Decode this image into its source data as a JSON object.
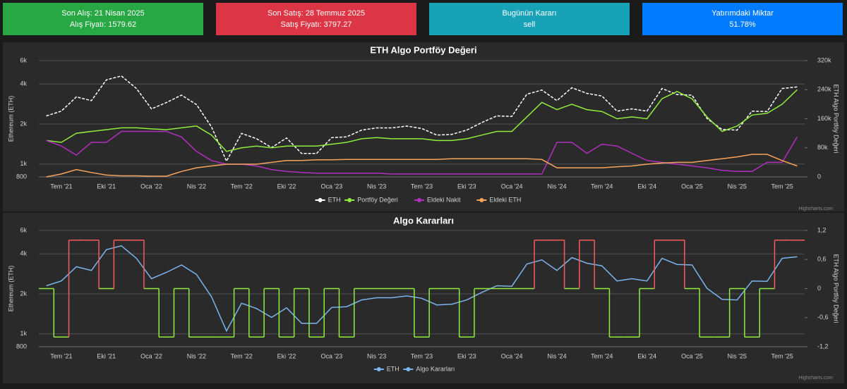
{
  "cards": [
    {
      "title": "Son Alış: 21 Nisan 2025",
      "text": "Alış Fiyatı: 1579.62",
      "color": "#28a745"
    },
    {
      "title": "Son Satış: 28 Temmuz 2025",
      "text": "Satış Fiyatı: 3797.27",
      "color": "#dc3545"
    },
    {
      "title": "Bugünün Kararı",
      "text": "sell",
      "color": "#17a2b8"
    },
    {
      "title": "Yatırımdaki Miktar",
      "text": "51.78%",
      "color": "#007bff"
    }
  ],
  "chart_data": [
    {
      "type": "line",
      "title": "ETH Algo Portföy Değeri",
      "y_label": "Ethereum (ETH)",
      "y2_label": "ETH Algo Portföy Değeri",
      "credits": "Highcharts.com",
      "categories": [
        null,
        "Tem '21",
        null,
        null,
        "Eki '21",
        null,
        null,
        "Oca '22",
        null,
        null,
        "Nis '22",
        null,
        null,
        "Tem '22",
        null,
        null,
        "Eki '22",
        null,
        null,
        "Oca '23",
        null,
        null,
        "Nis '23",
        null,
        null,
        "Tem '23",
        null,
        null,
        "Eki '23",
        null,
        null,
        "Oca '24",
        null,
        null,
        "Nis '24",
        null,
        null,
        "Tem '24",
        null,
        null,
        "Eki '24",
        null,
        null,
        "Oca '25",
        null,
        null,
        "Nis '25",
        null,
        null,
        "Tem '25",
        null
      ],
      "ylog": true,
      "ylim": [
        800,
        6000
      ],
      "yticks": [
        800,
        {
          "value": 1000,
          "label": "1k"
        },
        {
          "value": 2000,
          "label": "2k"
        },
        {
          "value": 4000,
          "label": "4k"
        },
        {
          "value": 6000,
          "label": "6k"
        }
      ],
      "y2lim": [
        0,
        320000
      ],
      "y2ticks": [
        0,
        {
          "value": 80000,
          "label": "80k"
        },
        {
          "value": 160000,
          "label": "160k"
        },
        {
          "value": 240000,
          "label": "240k"
        },
        {
          "value": 320000,
          "label": "320k"
        }
      ],
      "grid": true,
      "series": [
        {
          "name": "ETH",
          "color": "#ffffff",
          "dashed": true,
          "values": [
            2300,
            2500,
            3200,
            3000,
            4300,
            4600,
            3700,
            2600,
            2900,
            3300,
            2800,
            1900,
            1050,
            1700,
            1550,
            1330,
            1570,
            1200,
            1200,
            1580,
            1600,
            1800,
            1870,
            1870,
            1930,
            1850,
            1650,
            1670,
            1800,
            2050,
            2300,
            2280,
            3350,
            3600,
            3000,
            3750,
            3400,
            3250,
            2500,
            2600,
            2500,
            3700,
            3330,
            3300,
            2200,
            1820,
            1800,
            2500,
            2480,
            3700,
            3800
          ]
        },
        {
          "name": "Portföy Değeri",
          "color": "#90ed3d",
          "axis": "y2",
          "values": [
            100000,
            95000,
            120000,
            125000,
            130000,
            135000,
            135000,
            132000,
            130000,
            135000,
            140000,
            115000,
            70000,
            80000,
            85000,
            80000,
            85000,
            85000,
            85000,
            90000,
            95000,
            105000,
            108000,
            105000,
            105000,
            105000,
            100000,
            100000,
            105000,
            115000,
            125000,
            125000,
            165000,
            205000,
            185000,
            200000,
            185000,
            180000,
            160000,
            165000,
            160000,
            215000,
            235000,
            215000,
            165000,
            125000,
            140000,
            170000,
            175000,
            200000,
            240000
          ]
        },
        {
          "name": "Eldeki Nakit",
          "color": "#b22fbf",
          "axis": "y2",
          "values": [
            100000,
            85000,
            60000,
            95000,
            95000,
            125000,
            125000,
            125000,
            125000,
            110000,
            70000,
            45000,
            35000,
            35000,
            30000,
            20000,
            15000,
            12000,
            10000,
            10000,
            10000,
            10000,
            10000,
            8000,
            8000,
            8000,
            8000,
            8000,
            8000,
            8000,
            8000,
            8000,
            8000,
            8000,
            95000,
            95000,
            65000,
            90000,
            85000,
            65000,
            45000,
            40000,
            35000,
            30000,
            25000,
            18000,
            15000,
            15000,
            40000,
            40000,
            110000
          ]
        },
        {
          "name": "Eldeki ETH",
          "color": "#f7a35c",
          "axis": "y2",
          "values": [
            0,
            8000,
            20000,
            12000,
            5000,
            3000,
            3000,
            2000,
            2000,
            15000,
            25000,
            30000,
            35000,
            35000,
            35000,
            40000,
            45000,
            45000,
            47000,
            47000,
            48000,
            48000,
            48000,
            48000,
            48000,
            48000,
            48000,
            50000,
            50000,
            50000,
            50000,
            50000,
            50000,
            48000,
            25000,
            25000,
            25000,
            25000,
            28000,
            30000,
            35000,
            38000,
            40000,
            40000,
            45000,
            50000,
            55000,
            62000,
            62000,
            45000,
            30000
          ]
        }
      ]
    },
    {
      "type": "line",
      "title": "Algo Kararları",
      "y_label": "Ethereum (ETH)",
      "y2_label": "ETH Algo Portföy Değeri",
      "credits": "Highcharts.com",
      "categories": [
        null,
        "Tem '21",
        null,
        null,
        "Eki '21",
        null,
        null,
        "Oca '22",
        null,
        null,
        "Nis '22",
        null,
        null,
        "Tem '22",
        null,
        null,
        "Eki '22",
        null,
        null,
        "Oca '23",
        null,
        null,
        "Nis '23",
        null,
        null,
        "Tem '23",
        null,
        null,
        "Eki '23",
        null,
        null,
        "Oca '24",
        null,
        null,
        "Nis '24",
        null,
        null,
        "Tem '24",
        null,
        null,
        "Eki '24",
        null,
        null,
        "Oca '25",
        null,
        null,
        "Nis '25",
        null,
        null,
        "Tem '25",
        null
      ],
      "ylog": true,
      "ylim": [
        800,
        6000
      ],
      "yticks": [
        800,
        {
          "value": 1000,
          "label": "1k"
        },
        {
          "value": 2000,
          "label": "2k"
        },
        {
          "value": 4000,
          "label": "4k"
        },
        {
          "value": 6000,
          "label": "6k"
        }
      ],
      "y2lim": [
        -1.2,
        1.2
      ],
      "y2ticks": [
        {
          "value": -1.2,
          "label": "-1,2"
        },
        {
          "value": -0.6,
          "label": "-0,6"
        },
        0,
        {
          "value": 0.6,
          "label": "0,6"
        },
        {
          "value": 1.2,
          "label": "1,2"
        }
      ],
      "grid": true,
      "series": [
        {
          "name": "ETH",
          "color": "#7cb5ec",
          "values": [
            2300,
            2500,
            3200,
            3000,
            4300,
            4600,
            3700,
            2600,
            2900,
            3300,
            2800,
            1900,
            1050,
            1700,
            1550,
            1330,
            1570,
            1200,
            1200,
            1580,
            1600,
            1800,
            1870,
            1870,
            1930,
            1850,
            1650,
            1670,
            1800,
            2050,
            2300,
            2280,
            3350,
            3600,
            3000,
            3750,
            3400,
            3250,
            2500,
            2600,
            2500,
            3700,
            3330,
            3300,
            2200,
            1820,
            1800,
            2500,
            2480,
            3700,
            3800
          ]
        },
        {
          "name": "Algo Kararları",
          "color": "#7cb5ec",
          "axis": "y2",
          "step": true,
          "up_color": "#f45b5b",
          "down_color": "#90ed3d",
          "values": [
            0,
            -1,
            1,
            1,
            0,
            1,
            1,
            0,
            -1,
            0,
            -1,
            -1,
            -1,
            0,
            -1,
            0,
            -1,
            0,
            -1,
            0,
            -1,
            0,
            0,
            0,
            0,
            -1,
            0,
            0,
            -1,
            0,
            0,
            0,
            0,
            1,
            1,
            0,
            1,
            0,
            -1,
            -1,
            0,
            1,
            1,
            0,
            -1,
            -1,
            0,
            -1,
            0,
            1,
            1
          ]
        }
      ]
    }
  ]
}
